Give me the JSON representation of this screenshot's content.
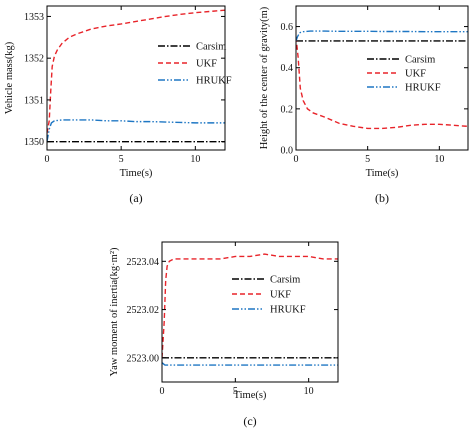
{
  "chart_data": [
    {
      "type": "line",
      "panel": "(a)",
      "title": "",
      "xlabel": "Time(s)",
      "ylabel": "Vehicle mass(kg)",
      "xlim": [
        0,
        12
      ],
      "ylim": [
        1349.8,
        1353.25
      ],
      "xticks": [
        0,
        5,
        10
      ],
      "yticks": [
        1350,
        1351,
        1352,
        1353
      ],
      "legend_position": "top-right",
      "series": [
        {
          "name": "Carsim",
          "color": "#000000",
          "dash": "dashdot",
          "x": [
            0,
            12
          ],
          "y": [
            1350.0,
            1350.0
          ]
        },
        {
          "name": "UKF",
          "color": "#e8242a",
          "dash": "dashed",
          "x": [
            0,
            0.15,
            0.25,
            0.35,
            0.5,
            0.7,
            1.0,
            1.5,
            2,
            3,
            4,
            5,
            6,
            7,
            8,
            9,
            10,
            11,
            12
          ],
          "y": [
            1350.2,
            1350.5,
            1351.2,
            1351.8,
            1352.05,
            1352.2,
            1352.35,
            1352.5,
            1352.58,
            1352.7,
            1352.77,
            1352.82,
            1352.88,
            1352.94,
            1353.0,
            1353.05,
            1353.09,
            1353.12,
            1353.15
          ]
        },
        {
          "name": "HRUKF",
          "color": "#1f77c4",
          "dash": "dashdotdot",
          "x": [
            0,
            0.15,
            0.3,
            0.5,
            1,
            2,
            3,
            4,
            5,
            6,
            7,
            8,
            9,
            10,
            11,
            12
          ],
          "y": [
            1350.0,
            1350.3,
            1350.45,
            1350.5,
            1350.52,
            1350.52,
            1350.52,
            1350.5,
            1350.5,
            1350.48,
            1350.48,
            1350.47,
            1350.46,
            1350.45,
            1350.45,
            1350.45
          ]
        }
      ]
    },
    {
      "type": "line",
      "panel": "(b)",
      "title": "",
      "xlabel": "Time(s)",
      "ylabel": "Height of the center of gravity(m)",
      "xlim": [
        0,
        12
      ],
      "ylim": [
        0,
        0.7
      ],
      "xticks": [
        0,
        5,
        10
      ],
      "yticks": [
        0.0,
        0.2,
        0.4,
        0.6
      ],
      "yticklabels": [
        "0.0",
        "0.2",
        "0.4",
        "0.6"
      ],
      "legend_position": "right",
      "series": [
        {
          "name": "Carsim",
          "color": "#000000",
          "dash": "dashdot",
          "x": [
            0,
            12
          ],
          "y": [
            0.53,
            0.53
          ]
        },
        {
          "name": "UKF",
          "color": "#e8242a",
          "dash": "dashed",
          "x": [
            0,
            0.15,
            0.3,
            0.5,
            0.8,
            1.2,
            2,
            3,
            4,
            5,
            6,
            7,
            8,
            9,
            10,
            11,
            12
          ],
          "y": [
            0.55,
            0.45,
            0.3,
            0.24,
            0.2,
            0.18,
            0.16,
            0.13,
            0.115,
            0.105,
            0.105,
            0.11,
            0.12,
            0.125,
            0.125,
            0.12,
            0.115
          ]
        },
        {
          "name": "HRUKF",
          "color": "#1f77c4",
          "dash": "dashdotdot",
          "x": [
            0,
            0.1,
            0.25,
            0.5,
            1,
            2,
            3,
            4,
            5,
            6,
            7,
            8,
            9,
            10,
            11,
            12
          ],
          "y": [
            0.53,
            0.55,
            0.57,
            0.575,
            0.578,
            0.578,
            0.577,
            0.577,
            0.577,
            0.576,
            0.576,
            0.576,
            0.575,
            0.575,
            0.575,
            0.575
          ]
        }
      ]
    },
    {
      "type": "line",
      "panel": "(c)",
      "title": "",
      "xlabel": "Time(s)",
      "ylabel": "Yaw moment of inertia(kg·m²)",
      "xlim": [
        0,
        12
      ],
      "ylim": [
        2522.99,
        2523.048
      ],
      "xticks": [
        0,
        5,
        10
      ],
      "yticks": [
        2523.0,
        2523.02,
        2523.04
      ],
      "yticklabels": [
        "2523.00",
        "2523.02",
        "2523.04"
      ],
      "legend_position": "right",
      "series": [
        {
          "name": "Carsim",
          "color": "#000000",
          "dash": "dashdot",
          "x": [
            0,
            12
          ],
          "y": [
            2523.0,
            2523.0
          ]
        },
        {
          "name": "UKF",
          "color": "#e8242a",
          "dash": "dashed",
          "x": [
            0,
            0.15,
            0.25,
            0.35,
            0.5,
            0.8,
            1.5,
            2,
            3,
            4,
            5,
            6,
            7,
            8,
            9,
            10,
            11,
            12
          ],
          "y": [
            2523.0,
            2523.015,
            2523.032,
            2523.038,
            2523.04,
            2523.041,
            2523.041,
            2523.041,
            2523.041,
            2523.041,
            2523.042,
            2523.042,
            2523.043,
            2523.042,
            2523.042,
            2523.042,
            2523.041,
            2523.041
          ]
        },
        {
          "name": "HRUKF",
          "color": "#1f77c4",
          "dash": "dashdotdot",
          "x": [
            0,
            0.2,
            0.5,
            1,
            2,
            3,
            4,
            5,
            6,
            7,
            8,
            9,
            10,
            11,
            12
          ],
          "y": [
            2522.998,
            2522.997,
            2522.997,
            2522.997,
            2522.997,
            2522.997,
            2522.997,
            2522.997,
            2522.997,
            2522.997,
            2522.997,
            2522.997,
            2522.997,
            2522.997,
            2522.997
          ]
        }
      ]
    }
  ]
}
